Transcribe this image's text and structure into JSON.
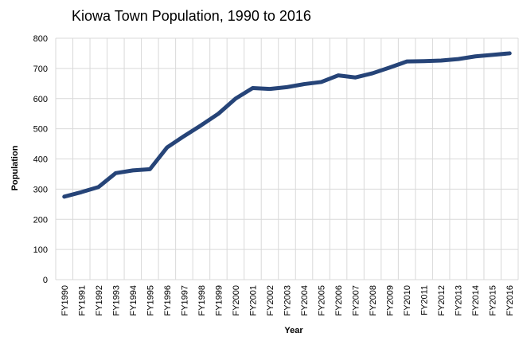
{
  "chart_data": {
    "type": "line",
    "title": "Kiowa Town Population, 1990 to 2016",
    "x_label": "Year",
    "y_label": "Population",
    "categories": [
      "FY1990",
      "FY1991",
      "FY1992",
      "FY1993",
      "FY1994",
      "FY1995",
      "FY1996",
      "FY1997",
      "FY1998",
      "FY1999",
      "FY2000",
      "FY2001",
      "FY2002",
      "FY2003",
      "FY2004",
      "FY2005",
      "FY2006",
      "FY2007",
      "FY2008",
      "FY2009",
      "FY2010",
      "FY2011",
      "FY2012",
      "FY2013",
      "FY2014",
      "FY2015",
      "FY2016"
    ],
    "series": [
      {
        "name": "Population",
        "color": "#264478",
        "values": [
          275,
          290,
          307,
          353,
          362,
          366,
          438,
          476,
          512,
          550,
          600,
          635,
          632,
          638,
          648,
          655,
          677,
          670,
          684,
          703,
          723,
          724,
          726,
          731,
          740,
          745,
          750
        ]
      }
    ],
    "ylim": [
      0,
      800
    ],
    "yticks": [
      0,
      100,
      200,
      300,
      400,
      500,
      600,
      700,
      800
    ],
    "grid": true
  }
}
